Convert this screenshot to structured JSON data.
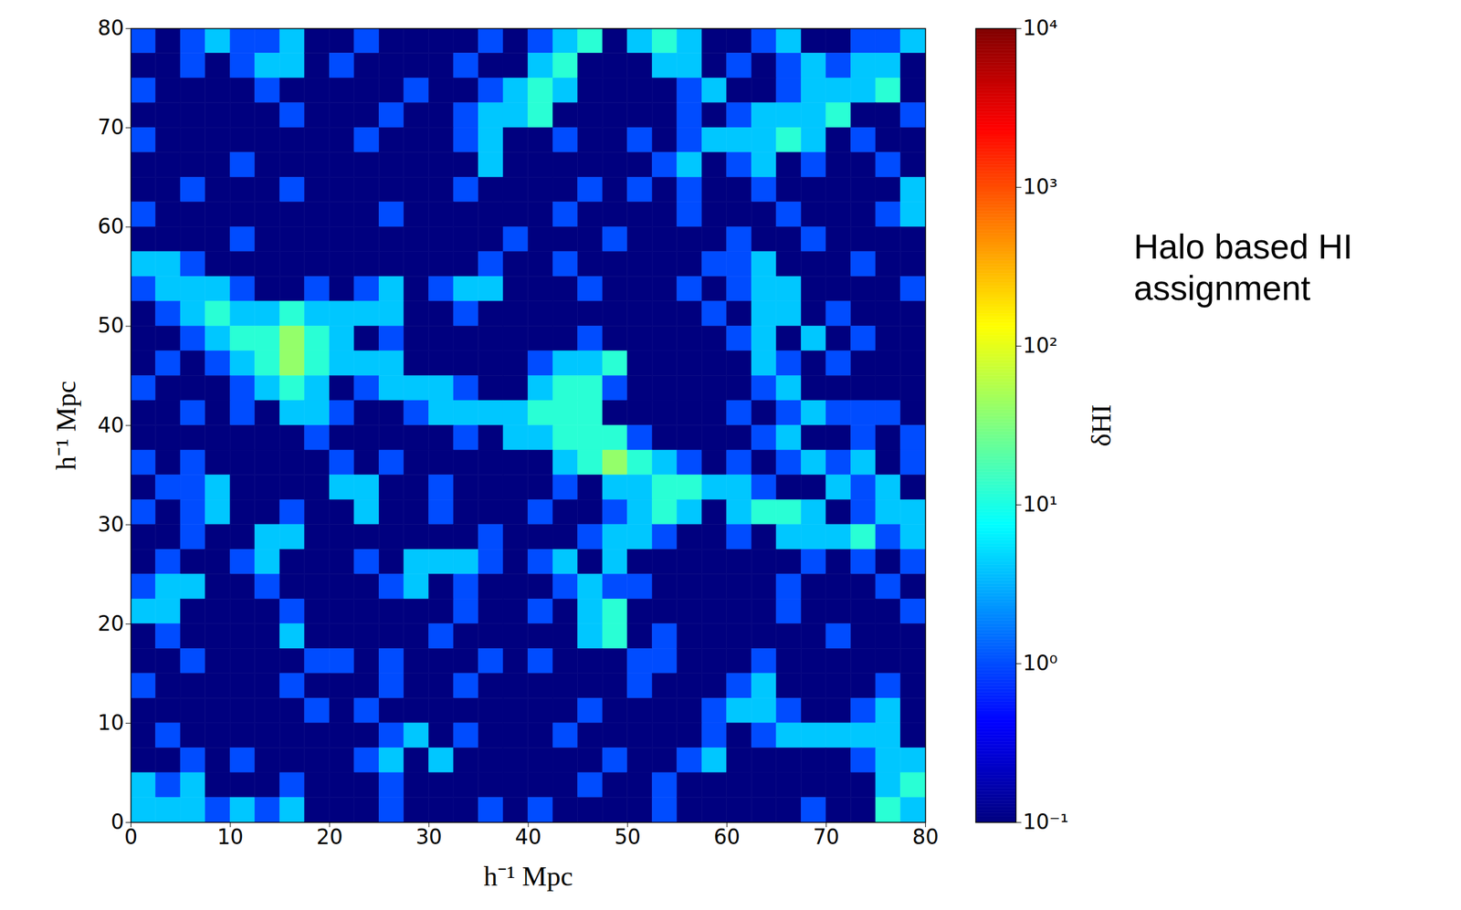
{
  "chart_data": {
    "type": "heatmap",
    "xlabel": "h⁻¹ Mpc",
    "ylabel": "h⁻¹ Mpc",
    "xlim": [
      0,
      80
    ],
    "ylim": [
      0,
      80
    ],
    "xticks": [
      0,
      10,
      20,
      30,
      40,
      50,
      60,
      70,
      80
    ],
    "yticks": [
      0,
      10,
      20,
      30,
      40,
      50,
      60,
      70,
      80
    ],
    "annotation": "Halo based HI assignment",
    "x": [
      1.25,
      3.75,
      6.25,
      8.75,
      11.25,
      13.75,
      16.25,
      18.75,
      21.25,
      23.75,
      26.25,
      28.75,
      31.25,
      33.75,
      36.25,
      38.75,
      41.25,
      43.75,
      46.25,
      48.75,
      51.25,
      53.75,
      56.25,
      58.75,
      61.25,
      63.75,
      66.25,
      68.75,
      71.25,
      73.75,
      76.25,
      78.75
    ],
    "y": [
      78.75,
      76.25,
      73.75,
      71.25,
      68.75,
      66.25,
      63.75,
      61.25,
      58.75,
      56.25,
      53.75,
      51.25,
      48.75,
      46.25,
      43.75,
      41.25,
      38.75,
      36.25,
      33.75,
      31.25,
      28.75,
      26.25,
      23.75,
      21.25,
      18.75,
      16.25,
      13.75,
      11.25,
      8.75,
      6.25,
      3.75,
      1.25
    ],
    "cells": [
      [
        1,
        0.1,
        1,
        4,
        1,
        1,
        4,
        0.1,
        0.1,
        1,
        0.1,
        0.1,
        0.1,
        0.1,
        1,
        0.1,
        1,
        4,
        12,
        0.1,
        4,
        12,
        4,
        0.1,
        0.1,
        1,
        4,
        0.1,
        0.1,
        1,
        1,
        4
      ],
      [
        0.1,
        0.1,
        1,
        0.1,
        1,
        4,
        4,
        0.1,
        1,
        0.1,
        0.1,
        0.1,
        0.1,
        1,
        0.1,
        0.1,
        4,
        12,
        0.1,
        0.1,
        0.1,
        4,
        4,
        0.1,
        1,
        0.1,
        1,
        4,
        1,
        4,
        4,
        0.1
      ],
      [
        1,
        0.1,
        0.1,
        0.1,
        0.1,
        1,
        0.1,
        0.1,
        0.1,
        0.1,
        0.1,
        1,
        0.1,
        0.1,
        1,
        4,
        12,
        4,
        0.1,
        0.1,
        0.1,
        0.1,
        1,
        4,
        0.1,
        0.1,
        1,
        4,
        4,
        4,
        12,
        0.1
      ],
      [
        0.1,
        0.1,
        0.1,
        0.1,
        0.1,
        0.1,
        1,
        0.1,
        0.1,
        0.1,
        1,
        0.1,
        0.1,
        1,
        4,
        4,
        12,
        0.1,
        0.1,
        0.1,
        0.1,
        0.1,
        1,
        0.1,
        1,
        4,
        4,
        4,
        12,
        0.1,
        0.1,
        1
      ],
      [
        1,
        0.1,
        0.1,
        0.1,
        0.1,
        0.1,
        0.1,
        0.1,
        0.1,
        1,
        0.1,
        0.1,
        0.1,
        1,
        4,
        0.1,
        0.1,
        1,
        0.1,
        0.1,
        1,
        0.1,
        1,
        4,
        4,
        4,
        12,
        4,
        0.1,
        1,
        0.1,
        0.1
      ],
      [
        0.1,
        0.1,
        0.1,
        0.1,
        1,
        0.1,
        0.1,
        0.1,
        0.1,
        0.1,
        0.1,
        0.1,
        0.1,
        0.1,
        4,
        0.1,
        0.1,
        0.1,
        0.1,
        0.1,
        0.1,
        1,
        4,
        0.1,
        1,
        4,
        0.1,
        1,
        0.1,
        0.1,
        1,
        0.1
      ],
      [
        0.1,
        0.1,
        1,
        0.1,
        0.1,
        0.1,
        1,
        0.1,
        0.1,
        0.1,
        0.1,
        0.1,
        0.1,
        1,
        0.1,
        0.1,
        0.1,
        0.1,
        1,
        0.1,
        1,
        0.1,
        1,
        0.1,
        0.1,
        1,
        0.1,
        0.1,
        0.1,
        0.1,
        0.1,
        4
      ],
      [
        1,
        0.1,
        0.1,
        0.1,
        0.1,
        0.1,
        0.1,
        0.1,
        0.1,
        0.1,
        1,
        0.1,
        0.1,
        0.1,
        0.1,
        0.1,
        0.1,
        1,
        0.1,
        0.1,
        0.1,
        0.1,
        1,
        0.1,
        0.1,
        0.1,
        1,
        0.1,
        0.1,
        0.1,
        1,
        4
      ],
      [
        0.1,
        0.1,
        0.1,
        0.1,
        1,
        0.1,
        0.1,
        0.1,
        0.1,
        0.1,
        0.1,
        0.1,
        0.1,
        0.1,
        0.1,
        1,
        0.1,
        0.1,
        0.1,
        1,
        0.1,
        0.1,
        0.1,
        0.1,
        1,
        0.1,
        0.1,
        1,
        0.1,
        0.1,
        0.1,
        0.1
      ],
      [
        4,
        4,
        1,
        0.1,
        0.1,
        0.1,
        0.1,
        0.1,
        0.1,
        0.1,
        0.1,
        0.1,
        0.1,
        0.1,
        1,
        0.1,
        0.1,
        1,
        0.1,
        0.1,
        0.1,
        0.1,
        0.1,
        1,
        1,
        4,
        0.1,
        0.1,
        0.1,
        1,
        0.1,
        0.1
      ],
      [
        1,
        4,
        4,
        4,
        1,
        0.1,
        0.1,
        1,
        0.1,
        1,
        4,
        0.1,
        1,
        4,
        4,
        0.1,
        0.1,
        0.1,
        1,
        0.1,
        0.1,
        0.1,
        1,
        0.1,
        1,
        4,
        4,
        0.1,
        0.1,
        0.1,
        0.1,
        1
      ],
      [
        0.1,
        1,
        4,
        12,
        4,
        4,
        12,
        4,
        4,
        4,
        4,
        0.1,
        0.1,
        1,
        0.1,
        0.1,
        0.1,
        0.1,
        0.1,
        0.1,
        0.1,
        0.1,
        0.1,
        1,
        0.1,
        4,
        4,
        0.1,
        1,
        0.1,
        0.1,
        0.1
      ],
      [
        0.1,
        0.1,
        1,
        4,
        12,
        12,
        40,
        12,
        4,
        0.1,
        1,
        0.1,
        0.1,
        0.1,
        0.1,
        0.1,
        0.1,
        0.1,
        1,
        0.1,
        0.1,
        0.1,
        0.1,
        0.1,
        1,
        4,
        0.1,
        4,
        0.1,
        1,
        0.1,
        0.1
      ],
      [
        0.1,
        1,
        0.1,
        1,
        4,
        12,
        40,
        12,
        4,
        4,
        4,
        0.1,
        0.1,
        0.1,
        0.1,
        0.1,
        1,
        4,
        4,
        12,
        0.1,
        0.1,
        0.1,
        0.1,
        0.1,
        4,
        1,
        0.1,
        1,
        0.1,
        0.1,
        0.1
      ],
      [
        1,
        0.1,
        0.1,
        0.1,
        1,
        4,
        12,
        4,
        0.1,
        1,
        4,
        4,
        4,
        1,
        0.1,
        0.1,
        4,
        12,
        12,
        1,
        0.1,
        0.1,
        0.1,
        0.1,
        0.1,
        1,
        4,
        0.1,
        0.1,
        0.1,
        0.1,
        0.1
      ],
      [
        0.1,
        0.1,
        1,
        0.1,
        1,
        0.1,
        4,
        4,
        1,
        0.1,
        0.1,
        1,
        4,
        4,
        4,
        4,
        12,
        12,
        12,
        0.1,
        0.1,
        0.1,
        0.1,
        0.1,
        1,
        0.1,
        1,
        4,
        1,
        1,
        1,
        0.1
      ],
      [
        0.1,
        0.1,
        0.1,
        0.1,
        0.1,
        0.1,
        0.1,
        1,
        0.1,
        0.1,
        0.1,
        0.1,
        0.1,
        1,
        0.1,
        4,
        4,
        12,
        12,
        12,
        1,
        0.1,
        0.1,
        0.1,
        0.1,
        1,
        4,
        0.1,
        0.1,
        1,
        0.1,
        1
      ],
      [
        1,
        0.1,
        1,
        0.1,
        0.1,
        0.1,
        0.1,
        0.1,
        1,
        0.1,
        1,
        0.1,
        0.1,
        0.1,
        0.1,
        0.1,
        0.1,
        4,
        12,
        40,
        12,
        4,
        1,
        0.1,
        1,
        0.1,
        1,
        4,
        1,
        4,
        0.1,
        1
      ],
      [
        0.1,
        1,
        1,
        4,
        0.1,
        0.1,
        0.1,
        0.1,
        4,
        4,
        0.1,
        0.1,
        1,
        0.1,
        0.1,
        0.1,
        0.1,
        1,
        0.1,
        4,
        4,
        12,
        12,
        4,
        4,
        1,
        0.1,
        0.1,
        4,
        1,
        4,
        0.1
      ],
      [
        1,
        0.1,
        1,
        4,
        0.1,
        0.1,
        1,
        0.1,
        0.1,
        4,
        0.1,
        0.1,
        1,
        0.1,
        0.1,
        0.1,
        1,
        0.1,
        0.1,
        1,
        4,
        12,
        4,
        0.1,
        4,
        12,
        12,
        4,
        0.1,
        1,
        4,
        4
      ],
      [
        0.1,
        0.1,
        1,
        0.1,
        0.1,
        4,
        4,
        0.1,
        0.1,
        0.1,
        0.1,
        0.1,
        0.1,
        0.1,
        1,
        0.1,
        0.1,
        0.1,
        1,
        4,
        4,
        1,
        0.1,
        0.1,
        1,
        0.1,
        4,
        4,
        4,
        12,
        1,
        4
      ],
      [
        0.1,
        1,
        0.1,
        0.1,
        1,
        4,
        0.1,
        0.1,
        0.1,
        1,
        0.1,
        4,
        4,
        4,
        1,
        0.1,
        1,
        4,
        0.1,
        4,
        0.1,
        0.1,
        0.1,
        0.1,
        0.1,
        0.1,
        0.1,
        1,
        0.1,
        1,
        0.1,
        1
      ],
      [
        1,
        4,
        4,
        0.1,
        0.1,
        1,
        0.1,
        0.1,
        0.1,
        0.1,
        1,
        4,
        0.1,
        1,
        0.1,
        0.1,
        0.1,
        1,
        4,
        1,
        1,
        0.1,
        0.1,
        0.1,
        0.1,
        0.1,
        1,
        0.1,
        0.1,
        0.1,
        1,
        0.1
      ],
      [
        4,
        4,
        0.1,
        0.1,
        0.1,
        0.1,
        1,
        0.1,
        0.1,
        0.1,
        0.1,
        0.1,
        0.1,
        1,
        0.1,
        0.1,
        1,
        0.1,
        4,
        12,
        0.1,
        0.1,
        0.1,
        0.1,
        0.1,
        0.1,
        1,
        0.1,
        0.1,
        0.1,
        0.1,
        1
      ],
      [
        0.1,
        1,
        0.1,
        0.1,
        0.1,
        0.1,
        4,
        0.1,
        0.1,
        0.1,
        0.1,
        0.1,
        1,
        0.1,
        0.1,
        0.1,
        0.1,
        0.1,
        4,
        12,
        0.1,
        1,
        0.1,
        0.1,
        0.1,
        0.1,
        0.1,
        0.1,
        1,
        0.1,
        0.1,
        0.1
      ],
      [
        0.1,
        0.1,
        1,
        0.1,
        0.1,
        0.1,
        0.1,
        1,
        1,
        0.1,
        1,
        0.1,
        0.1,
        0.1,
        1,
        0.1,
        1,
        0.1,
        0.1,
        0.1,
        1,
        1,
        0.1,
        0.1,
        0.1,
        1,
        0.1,
        0.1,
        0.1,
        0.1,
        0.1,
        0.1
      ],
      [
        1,
        0.1,
        0.1,
        0.1,
        0.1,
        0.1,
        1,
        0.1,
        0.1,
        0.1,
        1,
        0.1,
        0.1,
        1,
        0.1,
        0.1,
        0.1,
        0.1,
        0.1,
        0.1,
        1,
        0.1,
        0.1,
        0.1,
        1,
        4,
        0.1,
        0.1,
        0.1,
        0.1,
        1,
        0.1
      ],
      [
        0.1,
        0.1,
        0.1,
        0.1,
        0.1,
        0.1,
        0.1,
        1,
        0.1,
        1,
        0.1,
        0.1,
        0.1,
        0.1,
        0.1,
        0.1,
        0.1,
        0.1,
        1,
        0.1,
        0.1,
        0.1,
        0.1,
        1,
        4,
        4,
        1,
        0.1,
        0.1,
        1,
        4,
        0.1
      ],
      [
        0.1,
        1,
        0.1,
        0.1,
        0.1,
        0.1,
        0.1,
        0.1,
        0.1,
        0.1,
        1,
        4,
        0.1,
        1,
        0.1,
        0.1,
        0.1,
        1,
        0.1,
        0.1,
        0.1,
        0.1,
        0.1,
        1,
        0.1,
        1,
        4,
        4,
        4,
        4,
        4,
        0.1
      ],
      [
        0.1,
        0.1,
        1,
        0.1,
        1,
        0.1,
        0.1,
        0.1,
        0.1,
        1,
        4,
        0.1,
        4,
        0.1,
        0.1,
        0.1,
        0.1,
        0.1,
        0.1,
        1,
        0.1,
        0.1,
        1,
        4,
        0.1,
        0.1,
        0.1,
        0.1,
        0.1,
        1,
        4,
        4
      ],
      [
        4,
        1,
        4,
        0.1,
        0.1,
        0.1,
        1,
        0.1,
        0.1,
        0.1,
        1,
        0.1,
        0.1,
        0.1,
        0.1,
        0.1,
        0.1,
        0.1,
        1,
        0.1,
        0.1,
        1,
        0.1,
        0.1,
        0.1,
        0.1,
        0.1,
        0.1,
        0.1,
        0.1,
        4,
        12
      ],
      [
        4,
        4,
        4,
        1,
        4,
        1,
        4,
        0.1,
        0.1,
        0.1,
        1,
        0.1,
        0.1,
        0.1,
        1,
        0.1,
        1,
        0.1,
        0.1,
        0.1,
        0.1,
        1,
        0.1,
        0.1,
        0.1,
        0.1,
        0.1,
        1,
        0.1,
        0.1,
        12,
        4
      ]
    ],
    "colorbar": {
      "label": "δHI",
      "log": true,
      "lim": [
        0.1,
        10000
      ],
      "ticks": [
        {
          "value": 0.1,
          "label": "10⁻¹"
        },
        {
          "value": 1,
          "label": "10⁰"
        },
        {
          "value": 10,
          "label": "10¹"
        },
        {
          "value": 100,
          "label": "10²"
        },
        {
          "value": 1000,
          "label": "10³"
        },
        {
          "value": 10000,
          "label": "10⁴"
        }
      ]
    }
  }
}
